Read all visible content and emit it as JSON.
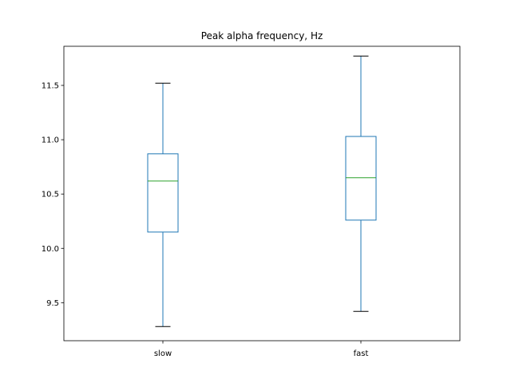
{
  "chart_data": {
    "type": "box",
    "title": "Peak alpha frequency, Hz",
    "xlabel": "",
    "ylabel": "",
    "categories": [
      "slow",
      "fast"
    ],
    "boxes": [
      {
        "category": "slow",
        "whisker_low": 9.28,
        "q1": 10.15,
        "median": 10.62,
        "q3": 10.87,
        "whisker_high": 11.52
      },
      {
        "category": "fast",
        "whisker_low": 9.42,
        "q1": 10.26,
        "median": 10.65,
        "q3": 11.03,
        "whisker_high": 11.77
      }
    ],
    "ylim": [
      9.15,
      11.86
    ],
    "yticks": [
      9.5,
      10.0,
      10.5,
      11.0,
      11.5
    ],
    "ytick_labels": [
      "9.5",
      "10.0",
      "10.5",
      "11.0",
      "11.5"
    ],
    "grid": false,
    "colors": {
      "box": "#1f77b4",
      "median": "#2ca02c",
      "caps": "#000000"
    }
  }
}
